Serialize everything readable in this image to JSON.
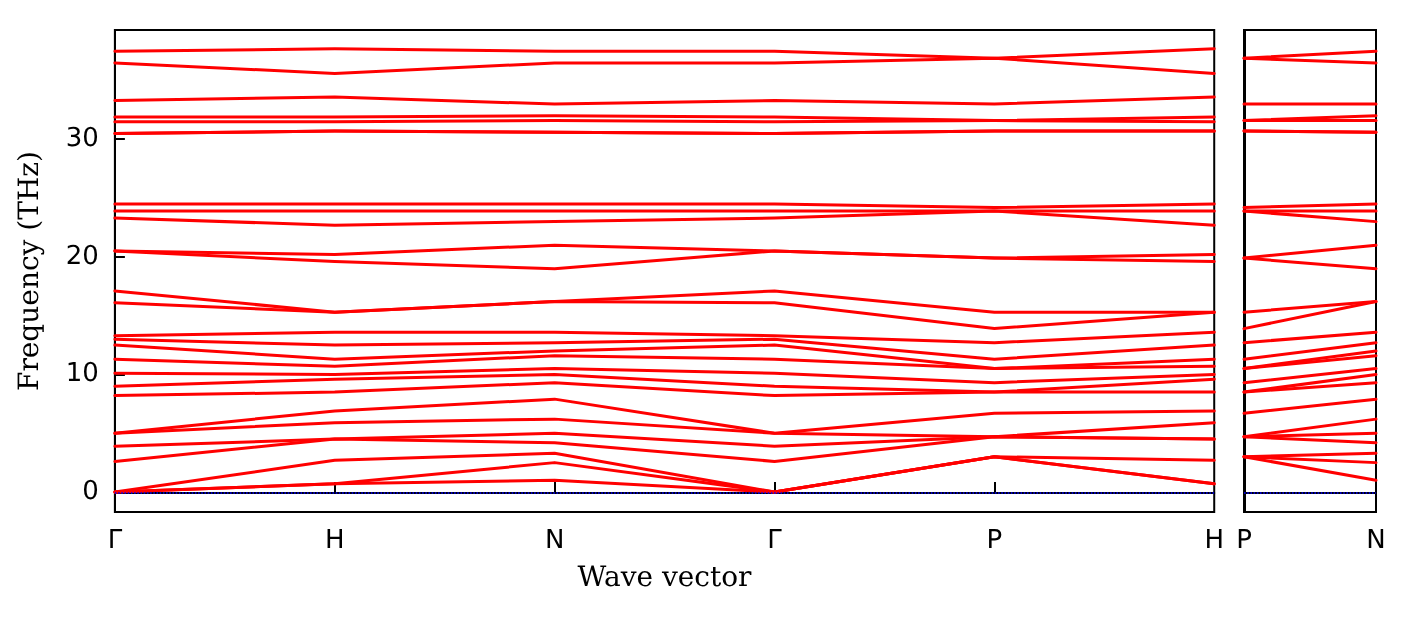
{
  "chart_data": [
    {
      "type": "line",
      "xlabel": "Wave vector",
      "ylabel": "Frequency (THz)",
      "marker": "none",
      "line_style": "solid",
      "grid": false,
      "categories": [
        "Γ",
        "H",
        "N",
        "Γ",
        "P",
        "H"
      ],
      "ylim": [
        -1.7,
        39.3
      ],
      "yticks": [
        0,
        10,
        20,
        30
      ],
      "ref_lines": [
        {
          "axis": "y",
          "value": 0,
          "color": "#0000ff",
          "line_style": "dotted"
        }
      ],
      "series": [
        {
          "color": "#ff0000",
          "values": [
            0,
            0.7,
            1.0,
            0,
            3.0,
            0.7
          ]
        },
        {
          "color": "#ff0000",
          "values": [
            0,
            0.7,
            2.5,
            0,
            3.0,
            0.7
          ]
        },
        {
          "color": "#ff0000",
          "values": [
            0,
            2.7,
            3.3,
            0,
            3.0,
            2.7
          ]
        },
        {
          "color": "#ff0000",
          "values": [
            2.6,
            4.5,
            4.2,
            2.6,
            4.7,
            4.5
          ]
        },
        {
          "color": "#ff0000",
          "values": [
            3.9,
            4.5,
            5.0,
            3.9,
            4.7,
            4.5
          ]
        },
        {
          "color": "#ff0000",
          "values": [
            5.0,
            5.9,
            6.2,
            5.0,
            4.7,
            5.9
          ]
        },
        {
          "color": "#ff0000",
          "values": [
            5.0,
            6.9,
            7.9,
            5.0,
            6.7,
            6.9
          ]
        },
        {
          "color": "#ff0000",
          "values": [
            8.2,
            8.5,
            9.3,
            8.2,
            8.5,
            8.5
          ]
        },
        {
          "color": "#ff0000",
          "values": [
            9.0,
            9.6,
            10.0,
            9.0,
            8.5,
            9.6
          ]
        },
        {
          "color": "#ff0000",
          "values": [
            10.1,
            10.0,
            10.5,
            10.1,
            9.3,
            10.0
          ]
        },
        {
          "color": "#ff0000",
          "values": [
            11.3,
            10.7,
            11.6,
            11.3,
            10.5,
            10.7
          ]
        },
        {
          "color": "#ff0000",
          "values": [
            12.5,
            11.3,
            12.0,
            12.5,
            10.5,
            11.3
          ]
        },
        {
          "color": "#ff0000",
          "values": [
            13.0,
            12.5,
            12.7,
            13.0,
            11.3,
            12.5
          ]
        },
        {
          "color": "#ff0000",
          "values": [
            13.3,
            13.6,
            13.6,
            13.3,
            12.7,
            13.6
          ]
        },
        {
          "color": "#ff0000",
          "values": [
            16.1,
            15.3,
            16.2,
            16.1,
            13.9,
            15.3
          ]
        },
        {
          "color": "#ff0000",
          "values": [
            17.1,
            15.3,
            16.2,
            17.1,
            15.3,
            15.3
          ]
        },
        {
          "color": "#ff0000",
          "values": [
            20.5,
            19.6,
            19.0,
            20.5,
            19.9,
            19.6
          ]
        },
        {
          "color": "#ff0000",
          "values": [
            20.5,
            20.2,
            21.0,
            20.5,
            19.9,
            20.2
          ]
        },
        {
          "color": "#ff0000",
          "values": [
            23.3,
            22.7,
            23.0,
            23.3,
            23.9,
            22.7
          ]
        },
        {
          "color": "#ff0000",
          "values": [
            23.9,
            23.9,
            23.9,
            23.9,
            23.9,
            23.9
          ]
        },
        {
          "color": "#ff0000",
          "values": [
            24.5,
            24.5,
            24.5,
            24.5,
            24.2,
            24.5
          ]
        },
        {
          "color": "#ff0000",
          "values": [
            30.5,
            30.7,
            30.6,
            30.5,
            30.7,
            30.7
          ]
        },
        {
          "color": "#ff0000",
          "values": [
            30.5,
            30.7,
            30.6,
            30.5,
            30.7,
            30.7
          ]
        },
        {
          "color": "#ff0000",
          "values": [
            31.5,
            31.5,
            31.6,
            31.5,
            31.6,
            31.5
          ]
        },
        {
          "color": "#ff0000",
          "values": [
            31.9,
            31.9,
            32.0,
            31.9,
            31.6,
            31.9
          ]
        },
        {
          "color": "#ff0000",
          "values": [
            33.3,
            33.6,
            33.0,
            33.3,
            33.0,
            33.6
          ]
        },
        {
          "color": "#ff0000",
          "values": [
            36.5,
            35.6,
            36.5,
            36.5,
            36.9,
            35.6
          ]
        },
        {
          "color": "#ff0000",
          "values": [
            37.5,
            37.7,
            37.5,
            37.5,
            36.9,
            37.7
          ]
        }
      ]
    },
    {
      "type": "line",
      "marker": "none",
      "line_style": "solid",
      "tick_labels": "x",
      "categories": [
        "P",
        "N"
      ],
      "ylim": [
        -1.7,
        39.3
      ],
      "yticks": [
        0,
        10,
        20,
        30
      ],
      "ref_lines": [
        {
          "axis": "y",
          "value": 0,
          "color": "#0000ff",
          "line_style": "dotted"
        }
      ],
      "series": [
        {
          "color": "#ff0000",
          "values": [
            3.0,
            1.0
          ]
        },
        {
          "color": "#ff0000",
          "values": [
            3.0,
            2.5
          ]
        },
        {
          "color": "#ff0000",
          "values": [
            3.0,
            3.3
          ]
        },
        {
          "color": "#ff0000",
          "values": [
            4.7,
            4.2
          ]
        },
        {
          "color": "#ff0000",
          "values": [
            4.7,
            5.0
          ]
        },
        {
          "color": "#ff0000",
          "values": [
            4.7,
            6.2
          ]
        },
        {
          "color": "#ff0000",
          "values": [
            6.7,
            7.9
          ]
        },
        {
          "color": "#ff0000",
          "values": [
            8.5,
            9.3
          ]
        },
        {
          "color": "#ff0000",
          "values": [
            8.5,
            10.0
          ]
        },
        {
          "color": "#ff0000",
          "values": [
            9.3,
            10.5
          ]
        },
        {
          "color": "#ff0000",
          "values": [
            10.5,
            11.6
          ]
        },
        {
          "color": "#ff0000",
          "values": [
            10.5,
            12.0
          ]
        },
        {
          "color": "#ff0000",
          "values": [
            11.3,
            12.7
          ]
        },
        {
          "color": "#ff0000",
          "values": [
            12.7,
            13.6
          ]
        },
        {
          "color": "#ff0000",
          "values": [
            13.9,
            16.2
          ]
        },
        {
          "color": "#ff0000",
          "values": [
            15.3,
            16.2
          ]
        },
        {
          "color": "#ff0000",
          "values": [
            19.9,
            19.0
          ]
        },
        {
          "color": "#ff0000",
          "values": [
            19.9,
            21.0
          ]
        },
        {
          "color": "#ff0000",
          "values": [
            23.9,
            23.0
          ]
        },
        {
          "color": "#ff0000",
          "values": [
            23.9,
            23.9
          ]
        },
        {
          "color": "#ff0000",
          "values": [
            24.2,
            24.5
          ]
        },
        {
          "color": "#ff0000",
          "values": [
            30.7,
            30.6
          ]
        },
        {
          "color": "#ff0000",
          "values": [
            30.7,
            30.6
          ]
        },
        {
          "color": "#ff0000",
          "values": [
            31.6,
            31.6
          ]
        },
        {
          "color": "#ff0000",
          "values": [
            31.6,
            32.0
          ]
        },
        {
          "color": "#ff0000",
          "values": [
            33.0,
            33.0
          ]
        },
        {
          "color": "#ff0000",
          "values": [
            36.9,
            36.5
          ]
        },
        {
          "color": "#ff0000",
          "values": [
            36.9,
            37.5
          ]
        }
      ]
    }
  ]
}
